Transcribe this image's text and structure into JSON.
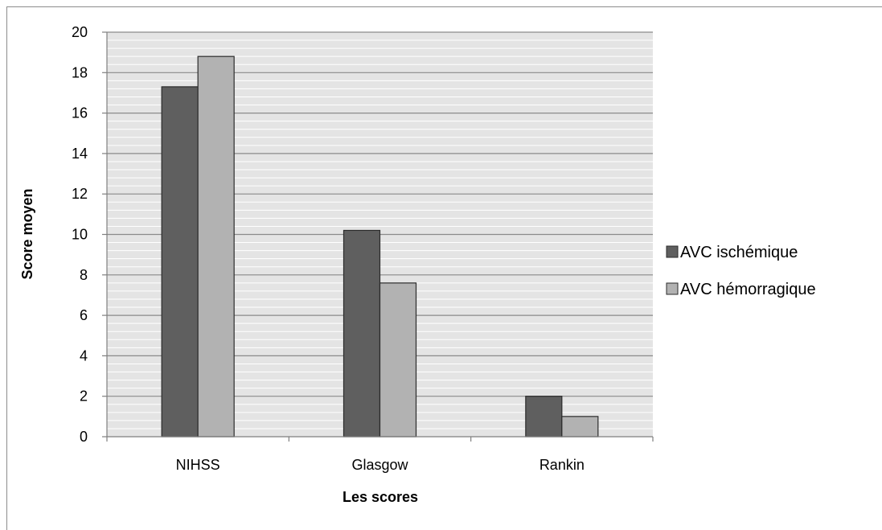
{
  "chart_data": {
    "type": "bar",
    "categories": [
      "NIHSS",
      "Glasgow",
      "Rankin"
    ],
    "series": [
      {
        "name": "AVC ischémique",
        "values": [
          17.3,
          10.2,
          2.0
        ],
        "color": "#5f5f5f"
      },
      {
        "name": "AVC hémorragique",
        "values": [
          18.8,
          7.6,
          1.0
        ],
        "color": "#b2b2b2"
      }
    ],
    "title": "",
    "xlabel": "Les scores",
    "ylabel": "Score moyen",
    "ylim": [
      0,
      20
    ],
    "yticks": [
      "0",
      "2",
      "4",
      "6",
      "8",
      "10",
      "12",
      "14",
      "16",
      "18",
      "20"
    ],
    "minor_grid_step": 0.4,
    "grid": true,
    "plot_background": "#e4e4e4",
    "legend_position": "right"
  }
}
